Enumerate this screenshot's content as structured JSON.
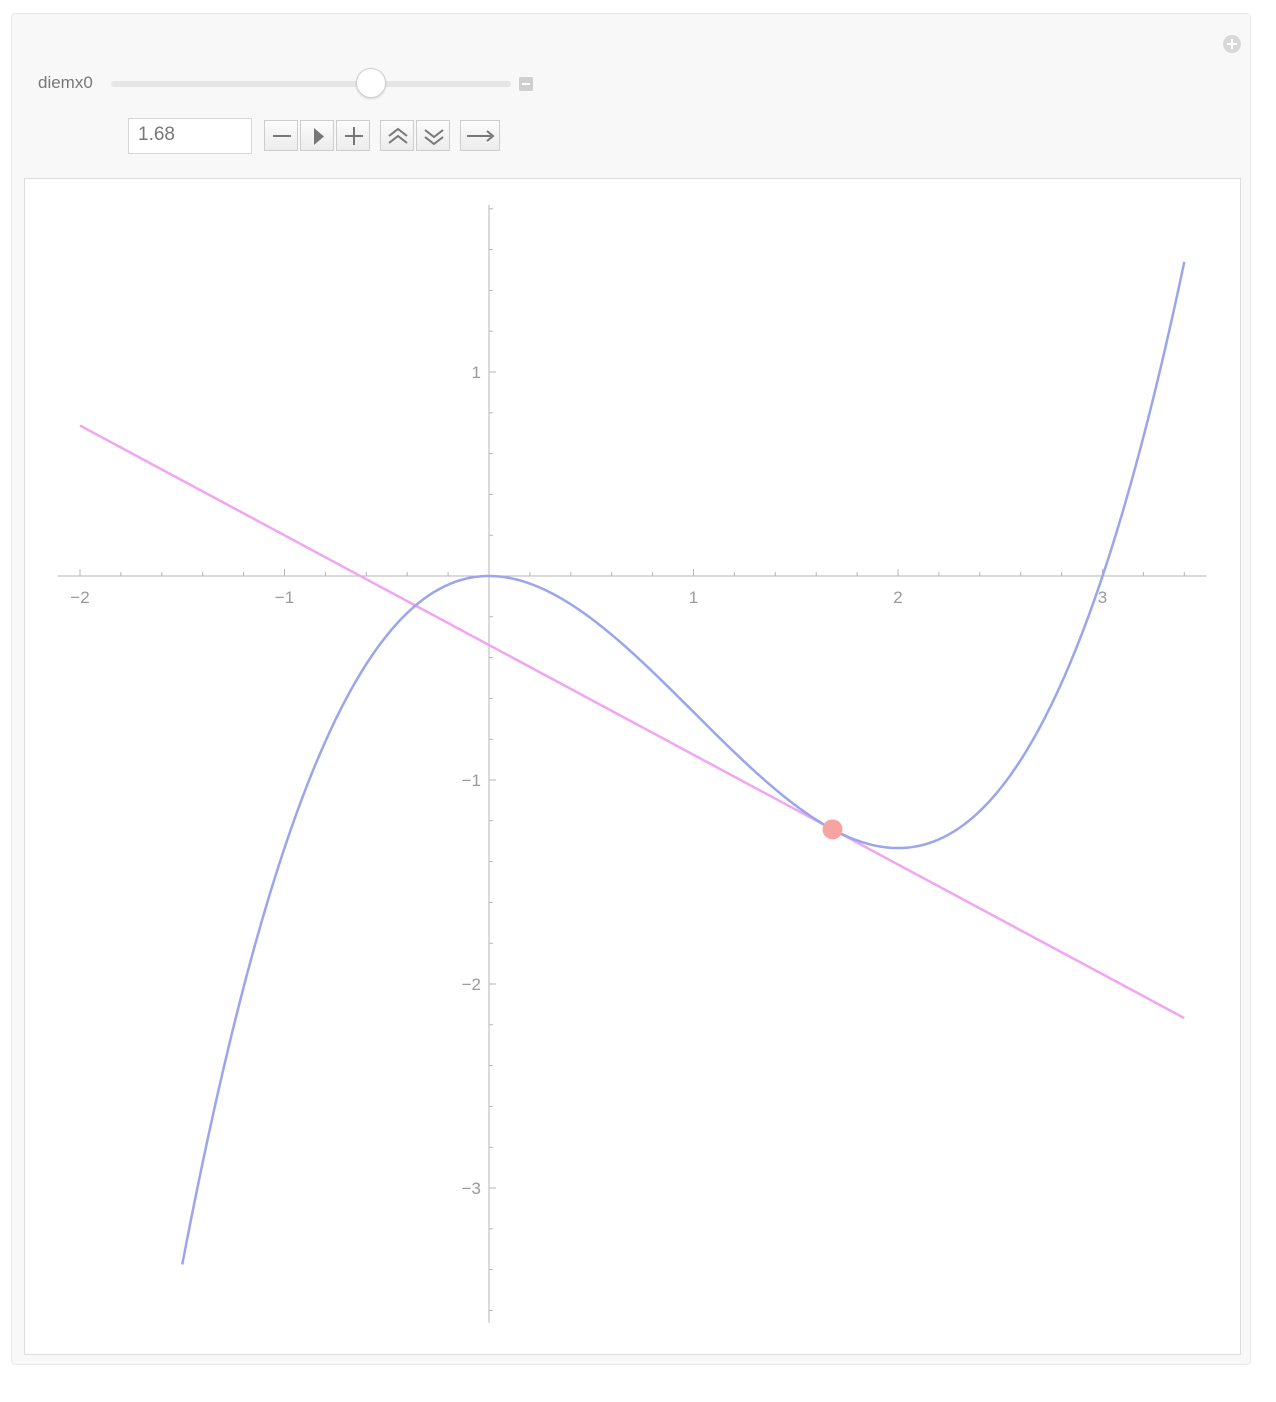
{
  "controls": {
    "variable_label": "diemx0",
    "value": "1.68",
    "slider": {
      "min": -1.5,
      "max": 3.4,
      "value": 1.68
    },
    "buttons": [
      "decrement",
      "play",
      "increment",
      "faster",
      "slower",
      "direction"
    ]
  },
  "chart_data": {
    "type": "line",
    "title": "",
    "xlabel": "",
    "ylabel": "",
    "xlim": [
      -2,
      3.4
    ],
    "ylim": [
      -3.65,
      1.8
    ],
    "x_ticks": [
      {
        "value": -2,
        "label": "−2"
      },
      {
        "value": -1,
        "label": "−1"
      },
      {
        "value": 1,
        "label": "1"
      },
      {
        "value": 2,
        "label": "2"
      },
      {
        "value": 3,
        "label": "3"
      }
    ],
    "y_ticks": [
      {
        "value": 1,
        "label": "1"
      },
      {
        "value": -1,
        "label": "−1"
      },
      {
        "value": -2,
        "label": "−2"
      },
      {
        "value": -3,
        "label": "−3"
      }
    ],
    "curve": {
      "x_range": [
        -1.5,
        3.4
      ],
      "coefficients": {
        "x3": 0.3333,
        "x2": -1.0,
        "x1": 0,
        "x0": 0
      },
      "color": "#9aa5ee"
    },
    "tangent": {
      "x_range": [
        -2,
        3.4
      ],
      "color": "#f0a6f0"
    },
    "point": {
      "x": 1.68,
      "color": "#f5a3a3"
    }
  }
}
